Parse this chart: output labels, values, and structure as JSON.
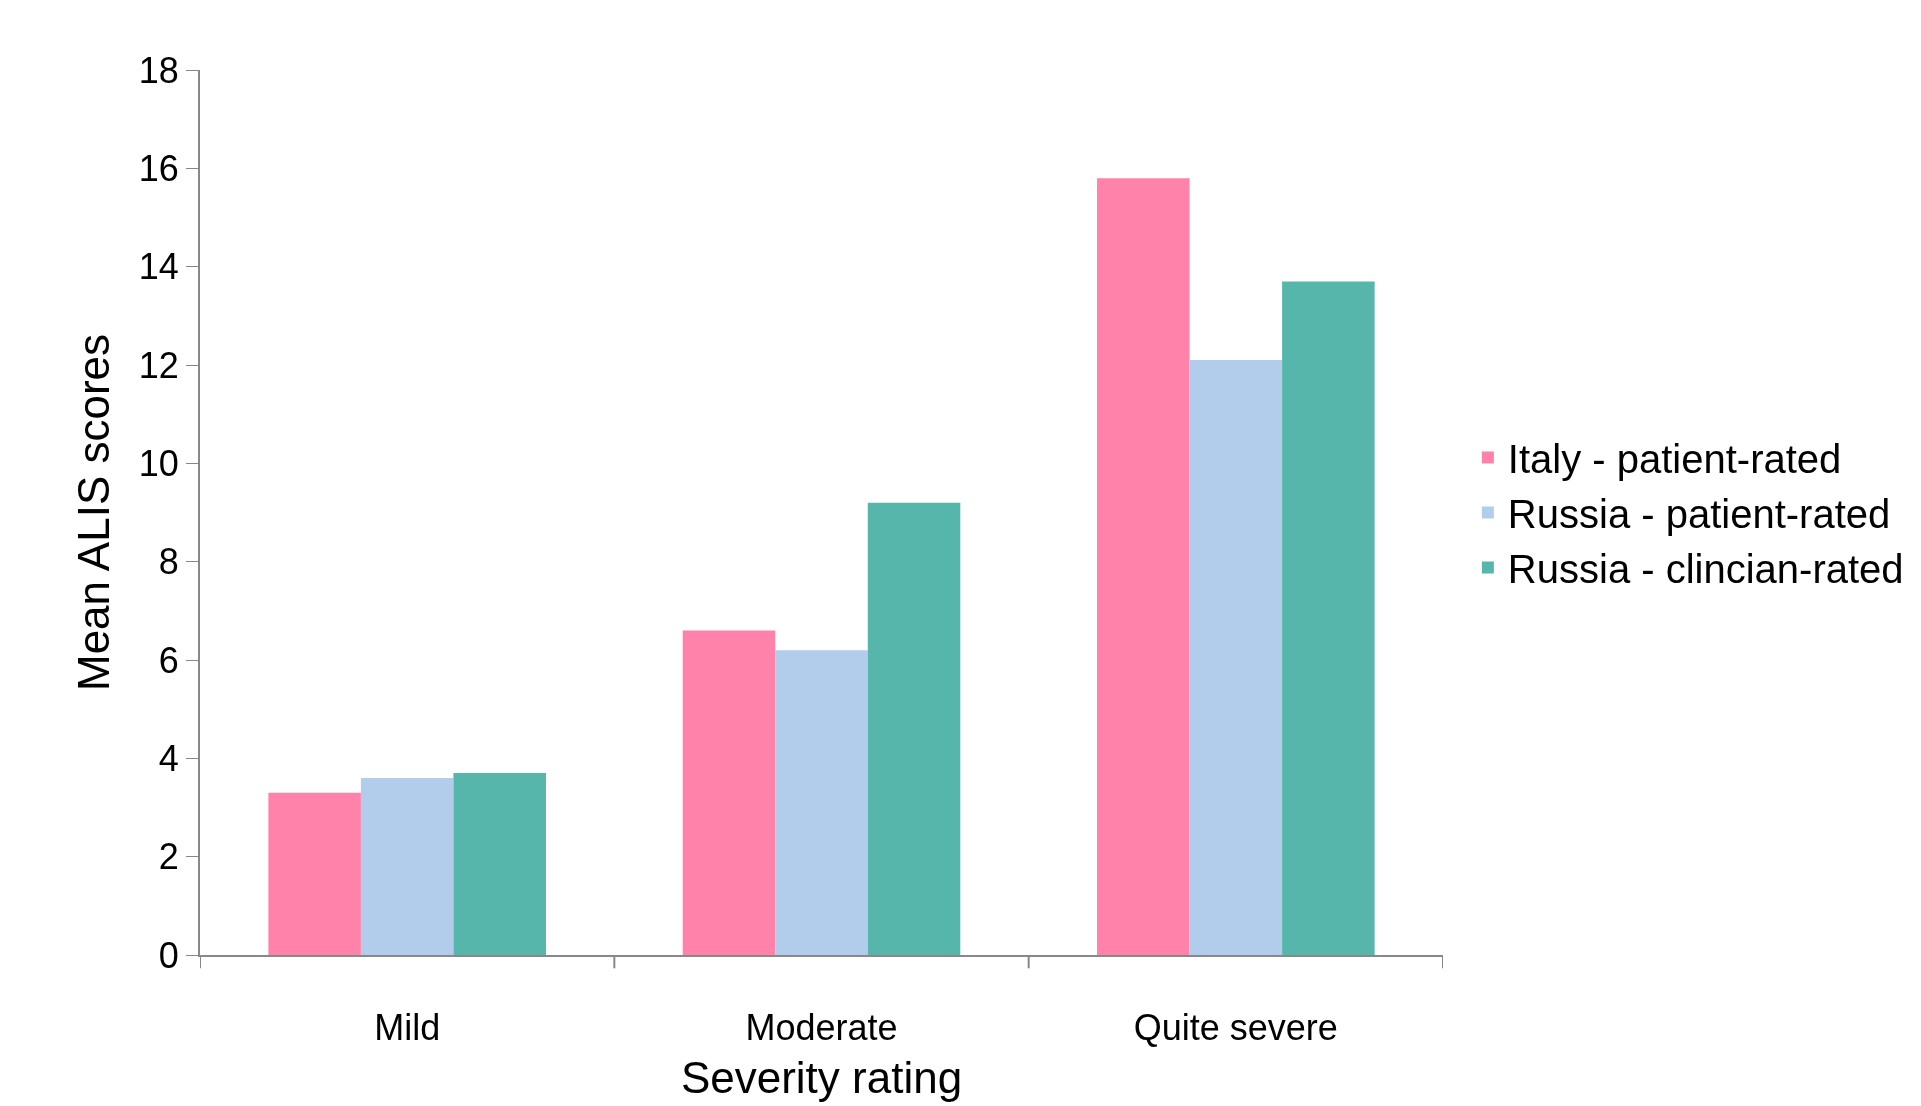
{
  "chart_data": {
    "type": "bar",
    "xlabel": "Severity rating",
    "ylabel": "Mean ALIS scores",
    "categories": [
      "Mild",
      "Moderate",
      "Quite severe"
    ],
    "series": [
      {
        "name": "Italy - patient-rated",
        "color": "#ff82aa",
        "values": [
          3.3,
          6.6,
          15.8
        ]
      },
      {
        "name": "Russia - patient-rated",
        "color": "#b2cdeb",
        "values": [
          3.6,
          6.2,
          12.1
        ]
      },
      {
        "name": "Russia - clincian-rated",
        "color": "#56b6ab",
        "values": [
          3.7,
          9.2,
          13.7
        ]
      }
    ],
    "ylim": [
      0,
      18
    ],
    "yticks": [
      0,
      2,
      4,
      6,
      8,
      10,
      12,
      14,
      16,
      18
    ],
    "legend": "right"
  }
}
